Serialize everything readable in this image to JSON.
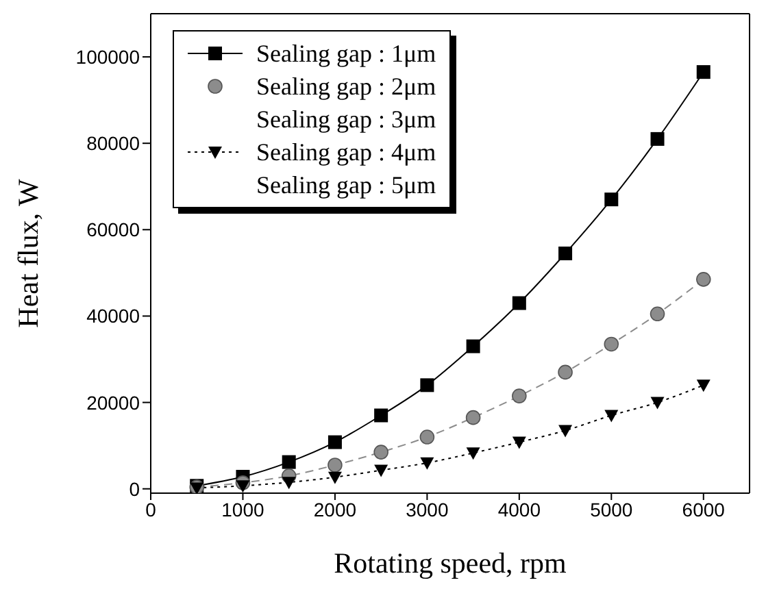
{
  "chart_data": {
    "type": "line",
    "xlabel": "Rotating speed, rpm",
    "ylabel": "Heat flux, W",
    "x": [
      500,
      1000,
      1500,
      2000,
      2500,
      3000,
      3500,
      4000,
      4500,
      5000,
      5500,
      6000
    ],
    "xlim": [
      0,
      6500
    ],
    "xticks": [
      0,
      1000,
      2000,
      3000,
      4000,
      5000,
      6000
    ],
    "ylim": [
      -1000,
      110000
    ],
    "yticks": [
      0,
      20000,
      40000,
      60000,
      80000,
      100000
    ],
    "legend": "top left",
    "series": [
      {
        "name": "Sealing gap : 1μm",
        "color": "#000000",
        "marker": "square",
        "line_style": "solid",
        "values": [
          700,
          2800,
          6200,
          10800,
          17000,
          24000,
          33000,
          43000,
          54500,
          67000,
          81000,
          96500
        ]
      },
      {
        "name": "Sealing gap : 2μm",
        "color": "#8c8c8c",
        "marker": "circle",
        "line_style": "dashed",
        "values": [
          400,
          1400,
          3000,
          5500,
          8500,
          12000,
          16500,
          21500,
          27000,
          33500,
          40500,
          48500
        ]
      },
      {
        "name": "Sealing gap : 3μm",
        "marker": "none",
        "values": [
          null,
          null,
          null,
          null,
          null,
          null,
          null,
          null,
          null,
          null,
          null,
          null
        ]
      },
      {
        "name": "Sealing gap : 4μm",
        "color": "#000000",
        "marker": "triangle",
        "line_style": "dotted",
        "values": [
          200,
          700,
          1500,
          2700,
          4300,
          6000,
          8300,
          10800,
          13500,
          17000,
          20000,
          24000
        ]
      },
      {
        "name": "Sealing gap : 5μm",
        "marker": "none",
        "values": [
          null,
          null,
          null,
          null,
          null,
          null,
          null,
          null,
          null,
          null,
          null,
          null
        ]
      }
    ]
  }
}
